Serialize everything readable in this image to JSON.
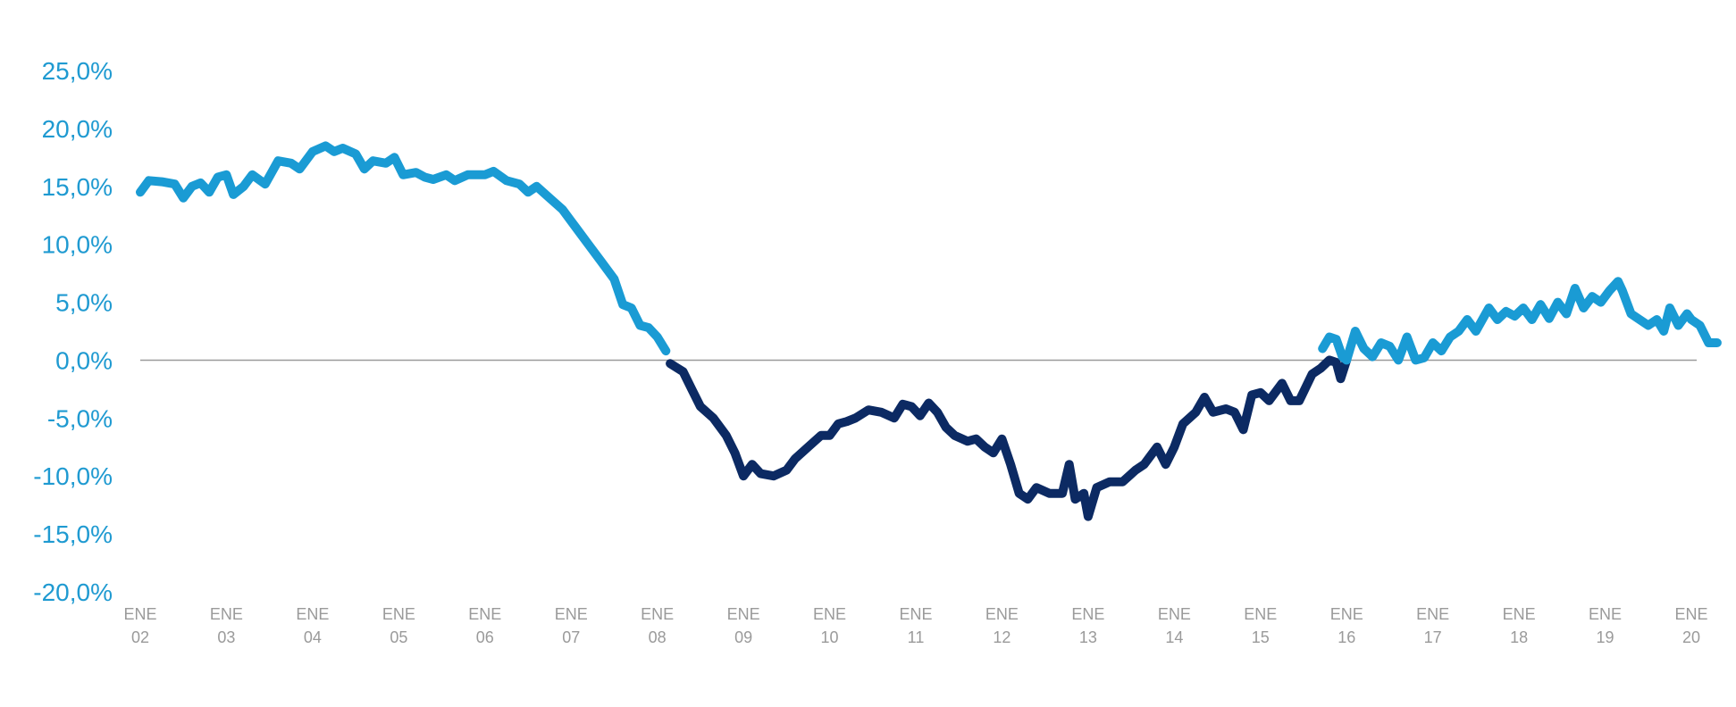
{
  "colors": {
    "positive": "#1a9bd4",
    "negative": "#0c2a63",
    "zero_line": "#9a9a9a",
    "ytick": "#1f9ad1",
    "xtick": "#9a9a9a"
  },
  "chart_data": {
    "type": "line",
    "title": "",
    "xlabel": "",
    "ylabel": "",
    "ylim": [
      -20,
      25
    ],
    "xlim": [
      2002,
      2020
    ],
    "grid": false,
    "legend": "none",
    "y_ticks": [
      "25,0%",
      "20,0%",
      "15,0%",
      "10,0%",
      "5,0%",
      "0,0%",
      "-5,0%",
      "-10,0%",
      "-15,0%",
      "-20,0%"
    ],
    "y_tick_values": [
      25,
      20,
      15,
      10,
      5,
      0,
      -5,
      -10,
      -15,
      -20
    ],
    "x_ticks": [
      {
        "top": "ENE",
        "bottom": "02"
      },
      {
        "top": "ENE",
        "bottom": "03"
      },
      {
        "top": "ENE",
        "bottom": "04"
      },
      {
        "top": "ENE",
        "bottom": "05"
      },
      {
        "top": "ENE",
        "bottom": "06"
      },
      {
        "top": "ENE",
        "bottom": "07"
      },
      {
        "top": "ENE",
        "bottom": "08"
      },
      {
        "top": "ENE",
        "bottom": "09"
      },
      {
        "top": "ENE",
        "bottom": "10"
      },
      {
        "top": "ENE",
        "bottom": "11"
      },
      {
        "top": "ENE",
        "bottom": "12"
      },
      {
        "top": "ENE",
        "bottom": "13"
      },
      {
        "top": "ENE",
        "bottom": "14"
      },
      {
        "top": "ENE",
        "bottom": "15"
      },
      {
        "top": "ENE",
        "bottom": "16"
      },
      {
        "top": "ENE",
        "bottom": "17"
      },
      {
        "top": "ENE",
        "bottom": "18"
      },
      {
        "top": "ENE",
        "bottom": "19"
      },
      {
        "top": "ENE",
        "bottom": "20"
      }
    ],
    "x_tick_values": [
      2002,
      2003,
      2004,
      2005,
      2006,
      2007,
      2008,
      2009,
      2010,
      2011,
      2012,
      2013,
      2014,
      2015,
      2016,
      2017,
      2018,
      2019,
      2020
    ],
    "series": [
      {
        "color": "#1a9bd4",
        "points": [
          [
            2002.0,
            14.5
          ],
          [
            2002.1,
            15.5
          ],
          [
            2002.25,
            15.4
          ],
          [
            2002.4,
            15.2
          ],
          [
            2002.5,
            14.0
          ],
          [
            2002.6,
            15.0
          ],
          [
            2002.7,
            15.3
          ],
          [
            2002.8,
            14.5
          ],
          [
            2002.9,
            15.8
          ],
          [
            2003.0,
            16.0
          ],
          [
            2003.08,
            14.3
          ],
          [
            2003.2,
            15.0
          ],
          [
            2003.3,
            16.0
          ],
          [
            2003.45,
            15.2
          ],
          [
            2003.6,
            17.2
          ],
          [
            2003.75,
            17.0
          ],
          [
            2003.85,
            16.5
          ],
          [
            2004.0,
            18.0
          ],
          [
            2004.15,
            18.5
          ],
          [
            2004.25,
            18.0
          ],
          [
            2004.35,
            18.3
          ],
          [
            2004.5,
            17.8
          ],
          [
            2004.6,
            16.5
          ],
          [
            2004.7,
            17.2
          ],
          [
            2004.85,
            17.0
          ],
          [
            2004.95,
            17.5
          ],
          [
            2005.05,
            16.0
          ],
          [
            2005.2,
            16.2
          ],
          [
            2005.3,
            15.8
          ],
          [
            2005.4,
            15.6
          ],
          [
            2005.55,
            16.0
          ],
          [
            2005.65,
            15.5
          ],
          [
            2005.8,
            16.0
          ],
          [
            2006.0,
            16.0
          ],
          [
            2006.1,
            16.3
          ],
          [
            2006.25,
            15.5
          ],
          [
            2006.4,
            15.2
          ],
          [
            2006.5,
            14.5
          ],
          [
            2006.6,
            15.0
          ],
          [
            2006.75,
            14.0
          ],
          [
            2006.9,
            13.0
          ],
          [
            2007.0,
            12.0
          ],
          [
            2007.1,
            11.0
          ],
          [
            2007.2,
            10.0
          ],
          [
            2007.35,
            8.5
          ],
          [
            2007.5,
            7.0
          ],
          [
            2007.6,
            4.8
          ],
          [
            2007.7,
            4.5
          ],
          [
            2007.8,
            3.0
          ],
          [
            2007.9,
            2.8
          ],
          [
            2008.0,
            2.0
          ],
          [
            2008.1,
            0.8
          ]
        ]
      },
      {
        "color": "#0c2a63",
        "points": [
          [
            2008.15,
            -0.3
          ],
          [
            2008.3,
            -1.0
          ],
          [
            2008.4,
            -2.5
          ],
          [
            2008.5,
            -4.0
          ],
          [
            2008.65,
            -5.0
          ],
          [
            2008.8,
            -6.5
          ],
          [
            2008.9,
            -8.0
          ],
          [
            2009.0,
            -10.0
          ],
          [
            2009.1,
            -9.0
          ],
          [
            2009.2,
            -9.8
          ],
          [
            2009.35,
            -10.0
          ],
          [
            2009.5,
            -9.5
          ],
          [
            2009.6,
            -8.5
          ],
          [
            2009.75,
            -7.5
          ],
          [
            2009.9,
            -6.5
          ],
          [
            2010.0,
            -6.5
          ],
          [
            2010.1,
            -5.5
          ],
          [
            2010.2,
            -5.3
          ],
          [
            2010.3,
            -5.0
          ],
          [
            2010.45,
            -4.3
          ],
          [
            2010.6,
            -4.5
          ],
          [
            2010.75,
            -5.0
          ],
          [
            2010.85,
            -3.8
          ],
          [
            2010.95,
            -4.0
          ],
          [
            2011.05,
            -4.8
          ],
          [
            2011.15,
            -3.7
          ],
          [
            2011.25,
            -4.5
          ],
          [
            2011.35,
            -5.8
          ],
          [
            2011.45,
            -6.5
          ],
          [
            2011.6,
            -7.0
          ],
          [
            2011.7,
            -6.8
          ],
          [
            2011.8,
            -7.5
          ],
          [
            2011.9,
            -8.0
          ],
          [
            2012.0,
            -6.8
          ],
          [
            2012.1,
            -9.0
          ],
          [
            2012.2,
            -11.5
          ],
          [
            2012.3,
            -12.0
          ],
          [
            2012.4,
            -11.0
          ],
          [
            2012.55,
            -11.5
          ],
          [
            2012.7,
            -11.5
          ],
          [
            2012.78,
            -9.0
          ],
          [
            2012.85,
            -12.0
          ],
          [
            2012.95,
            -11.5
          ],
          [
            2013.0,
            -13.5
          ],
          [
            2013.1,
            -11.0
          ],
          [
            2013.25,
            -10.5
          ],
          [
            2013.4,
            -10.5
          ],
          [
            2013.55,
            -9.5
          ],
          [
            2013.65,
            -9.0
          ],
          [
            2013.8,
            -7.5
          ],
          [
            2013.9,
            -9.0
          ],
          [
            2014.0,
            -7.5
          ],
          [
            2014.1,
            -5.5
          ],
          [
            2014.25,
            -4.5
          ],
          [
            2014.35,
            -3.2
          ],
          [
            2014.45,
            -4.5
          ],
          [
            2014.6,
            -4.2
          ],
          [
            2014.7,
            -4.5
          ],
          [
            2014.8,
            -6.0
          ],
          [
            2014.9,
            -3.0
          ],
          [
            2015.0,
            -2.8
          ],
          [
            2015.1,
            -3.5
          ],
          [
            2015.25,
            -2.0
          ],
          [
            2015.35,
            -3.5
          ],
          [
            2015.45,
            -3.5
          ],
          [
            2015.6,
            -1.2
          ],
          [
            2015.7,
            -0.7
          ],
          [
            2015.8,
            0.0
          ],
          [
            2015.88,
            -0.2
          ],
          [
            2015.93,
            -1.6
          ],
          [
            2016.0,
            0.0
          ]
        ]
      },
      {
        "color": "#1a9bd4",
        "points": [
          [
            2015.72,
            1.0
          ],
          [
            2015.8,
            2.0
          ],
          [
            2015.88,
            1.8
          ],
          [
            2015.95,
            0.3
          ],
          [
            2016.0,
            0.0
          ],
          [
            2016.1,
            2.5
          ],
          [
            2016.2,
            1.0
          ],
          [
            2016.3,
            0.3
          ],
          [
            2016.4,
            1.5
          ],
          [
            2016.5,
            1.2
          ],
          [
            2016.6,
            0.0
          ],
          [
            2016.7,
            2.0
          ],
          [
            2016.8,
            0.0
          ],
          [
            2016.9,
            0.2
          ],
          [
            2017.0,
            1.5
          ],
          [
            2017.1,
            0.8
          ],
          [
            2017.2,
            2.0
          ],
          [
            2017.3,
            2.5
          ],
          [
            2017.4,
            3.5
          ],
          [
            2017.5,
            2.5
          ],
          [
            2017.65,
            4.5
          ],
          [
            2017.75,
            3.5
          ],
          [
            2017.85,
            4.2
          ],
          [
            2017.95,
            3.8
          ],
          [
            2018.05,
            4.5
          ],
          [
            2018.15,
            3.5
          ],
          [
            2018.25,
            4.8
          ],
          [
            2018.35,
            3.6
          ],
          [
            2018.45,
            5.0
          ],
          [
            2018.55,
            4.0
          ],
          [
            2018.65,
            6.2
          ],
          [
            2018.75,
            4.5
          ],
          [
            2018.85,
            5.5
          ],
          [
            2018.95,
            5.0
          ],
          [
            2019.05,
            6.0
          ],
          [
            2019.15,
            6.8
          ],
          [
            2019.2,
            6.0
          ],
          [
            2019.3,
            4.0
          ],
          [
            2019.4,
            3.5
          ],
          [
            2019.5,
            3.0
          ],
          [
            2019.6,
            3.5
          ],
          [
            2019.68,
            2.5
          ],
          [
            2019.75,
            4.5
          ],
          [
            2019.85,
            3.0
          ],
          [
            2019.95,
            4.0
          ],
          [
            2020.0,
            3.5
          ],
          [
            2020.1,
            3.0
          ],
          [
            2020.2,
            1.5
          ],
          [
            2020.3,
            1.5
          ]
        ]
      }
    ]
  }
}
